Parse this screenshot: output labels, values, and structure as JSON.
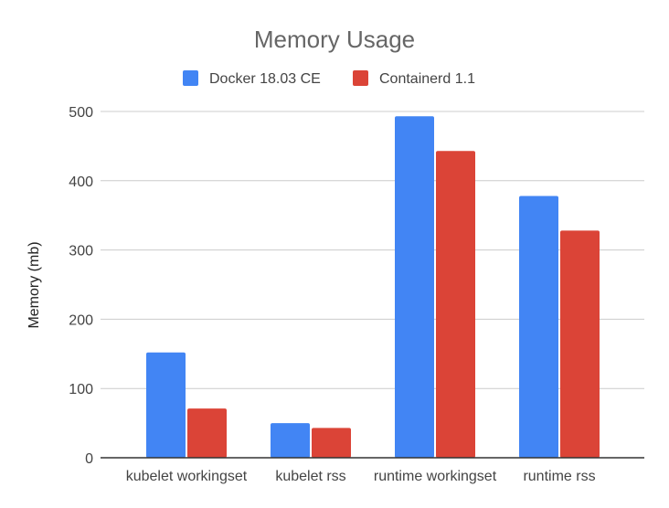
{
  "chart_data": {
    "type": "bar",
    "title": "Memory Usage",
    "xlabel": "",
    "ylabel": "Memory (mb)",
    "ylim": [
      0,
      500
    ],
    "yticks": [
      0,
      100,
      200,
      300,
      400,
      500
    ],
    "grid": true,
    "legend_position": "top",
    "categories": [
      "kubelet workingset",
      "kubelet rss",
      "runtime workingset",
      "runtime rss"
    ],
    "series": [
      {
        "name": "Docker 18.03 CE",
        "color": "#4285f4",
        "values": [
          152,
          50,
          493,
          378
        ]
      },
      {
        "name": "Containerd 1.1",
        "color": "#db4437",
        "values": [
          71,
          43,
          443,
          328
        ]
      }
    ]
  }
}
